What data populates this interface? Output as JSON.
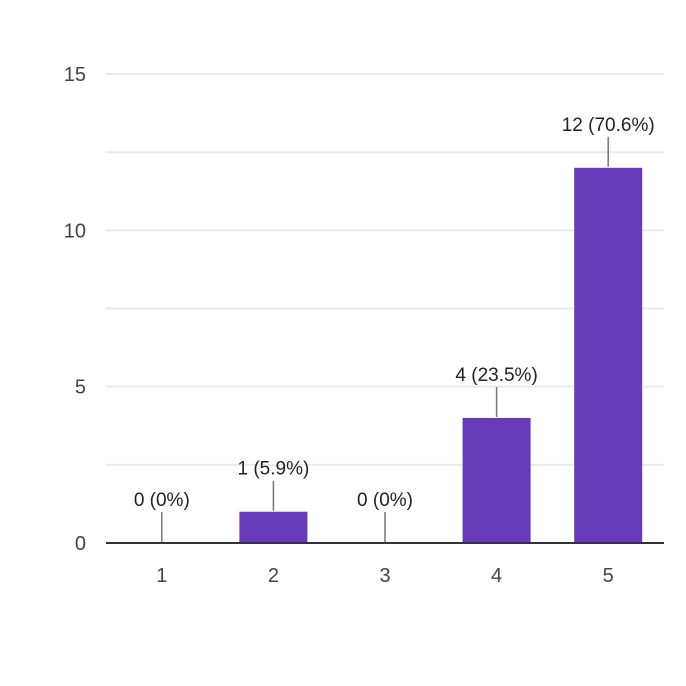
{
  "chart_data": {
    "type": "bar",
    "categories": [
      "1",
      "2",
      "3",
      "4",
      "5"
    ],
    "values": [
      0,
      1,
      0,
      4,
      12
    ],
    "data_labels": [
      "0 (0%)",
      "1 (5.9%)",
      "0 (0%)",
      "4 (23.5%)",
      "12 (70.6%)"
    ],
    "ylim": [
      0,
      15
    ],
    "yticks": [
      "0",
      "5",
      "10",
      "15"
    ],
    "ytick_values": [
      0,
      5,
      10,
      15
    ],
    "minor_grid_values": [
      2.5,
      7.5,
      12.5
    ],
    "title": "",
    "xlabel": "",
    "ylabel": "",
    "grid": true,
    "legend": "none",
    "bar_color": "#673ab7"
  }
}
